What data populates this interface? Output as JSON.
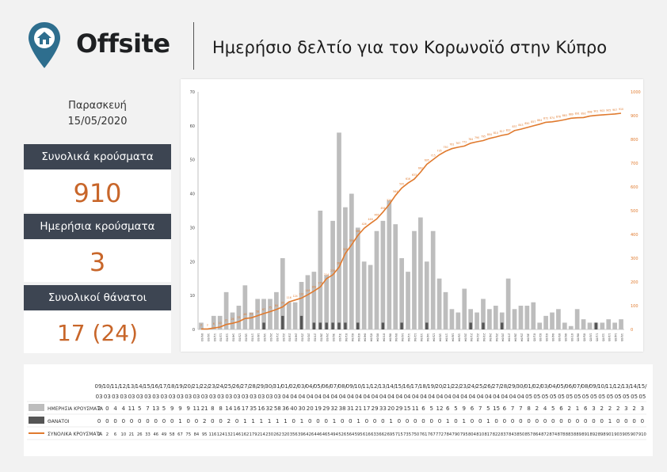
{
  "header": {
    "brand": "Offsite",
    "title": "Ημερήσιο δελτίο για τον Κορωνοϊό στην Κύπρο"
  },
  "summary": {
    "day": "Παρασκευή",
    "date": "15/05/2020",
    "total_cases_label": "Συνολικά κρούσματα",
    "total_cases": "910",
    "daily_cases_label": "Ημερήσια κρούσματα",
    "daily_cases": "3",
    "deaths_label": "Συνολικοί θάνατοι",
    "deaths": "17 (24)"
  },
  "colors": {
    "bar": "#bdbdbd",
    "death": "#555555",
    "line": "#e07a2e",
    "label_bg": "#3d4552",
    "accent": "#c8662a"
  },
  "chart_data": {
    "type": "bar",
    "categories": [
      "09/03",
      "10/03",
      "11/03",
      "12/03",
      "13/03",
      "14/03",
      "15/03",
      "16/03",
      "17/03",
      "18/03",
      "19/03",
      "20/03",
      "21/03",
      "22/03",
      "23/03",
      "24/03",
      "25/03",
      "26/03",
      "27/03",
      "28/03",
      "29/03",
      "30/03",
      "31/03",
      "01/04",
      "02/04",
      "03/04",
      "04/04",
      "05/04",
      "06/04",
      "07/04",
      "08/04",
      "09/04",
      "10/04",
      "11/04",
      "12/04",
      "13/04",
      "14/04",
      "15/04",
      "16/04",
      "17/04",
      "18/04",
      "19/04",
      "20/04",
      "21/04",
      "22/04",
      "23/04",
      "24/04",
      "25/04",
      "26/04",
      "27/04",
      "28/04",
      "29/04",
      "30/04",
      "01/05",
      "02/05",
      "03/05",
      "04/05",
      "05/05",
      "06/05",
      "07/05",
      "08/05",
      "09/05",
      "10/05",
      "11/05",
      "12/05",
      "13/05",
      "14/05",
      "15/05"
    ],
    "series": [
      {
        "name": "ΗΜΕΡΗΣΙΑ ΚΡΟΥΣΜΑΤΑ",
        "values": [
          2,
          0,
          4,
          4,
          11,
          5,
          7,
          13,
          5,
          9,
          9,
          9,
          11,
          21,
          8,
          8,
          14,
          16,
          17,
          35,
          16,
          32,
          58,
          36,
          40,
          30,
          20,
          19,
          29,
          32,
          38,
          31,
          21,
          17,
          29,
          33,
          20,
          29,
          15,
          11,
          6,
          5,
          12,
          6,
          5,
          9,
          6,
          7,
          5,
          15,
          6,
          7,
          7,
          8,
          2,
          4,
          5,
          6,
          2,
          1,
          6,
          3,
          2,
          2,
          2,
          3,
          2,
          3
        ]
      },
      {
        "name": "ΘΑΝΑΤΟΙ",
        "values": [
          0,
          0,
          0,
          0,
          0,
          0,
          0,
          0,
          0,
          0,
          1,
          0,
          0,
          2,
          0,
          0,
          2,
          0,
          1,
          1,
          1,
          1,
          1,
          1,
          0,
          1,
          0,
          0,
          0,
          1,
          0,
          0,
          1,
          0,
          0,
          0,
          1,
          0,
          0,
          0,
          0,
          0,
          0,
          1,
          0,
          1,
          0,
          0,
          1,
          0,
          0,
          0,
          0,
          0,
          0,
          0,
          0,
          0,
          0,
          0,
          0,
          0,
          0,
          1,
          0,
          0,
          0,
          0
        ]
      },
      {
        "name": "ΣΥΝΟΛΙΚΑ ΚΡΟΥΣΜΑΤΑ",
        "values": [
          2,
          2,
          6,
          10,
          21,
          26,
          33,
          46,
          49,
          58,
          67,
          75,
          84,
          95,
          116,
          124,
          132,
          146,
          162,
          179,
          214,
          230,
          262,
          320,
          356,
          396,
          426,
          446,
          465,
          494,
          526,
          564,
          595,
          616,
          633,
          662,
          695,
          715,
          735,
          750,
          761,
          767,
          772,
          784,
          790,
          795,
          804,
          810,
          817,
          822,
          837,
          843,
          850,
          857,
          864,
          872,
          874,
          878,
          883,
          889,
          891,
          892,
          898,
          901,
          903,
          905,
          907,
          910
        ]
      }
    ],
    "y_left": {
      "min": 0,
      "max": 70,
      "ticks": [
        "0",
        "10",
        "20",
        "30",
        "40",
        "50",
        "60",
        "70"
      ]
    },
    "y_right": {
      "min": 0,
      "max": 1000,
      "ticks": [
        "0",
        "100",
        "200",
        "300",
        "400",
        "500",
        "600",
        "700",
        "800",
        "900",
        "1000"
      ]
    }
  }
}
